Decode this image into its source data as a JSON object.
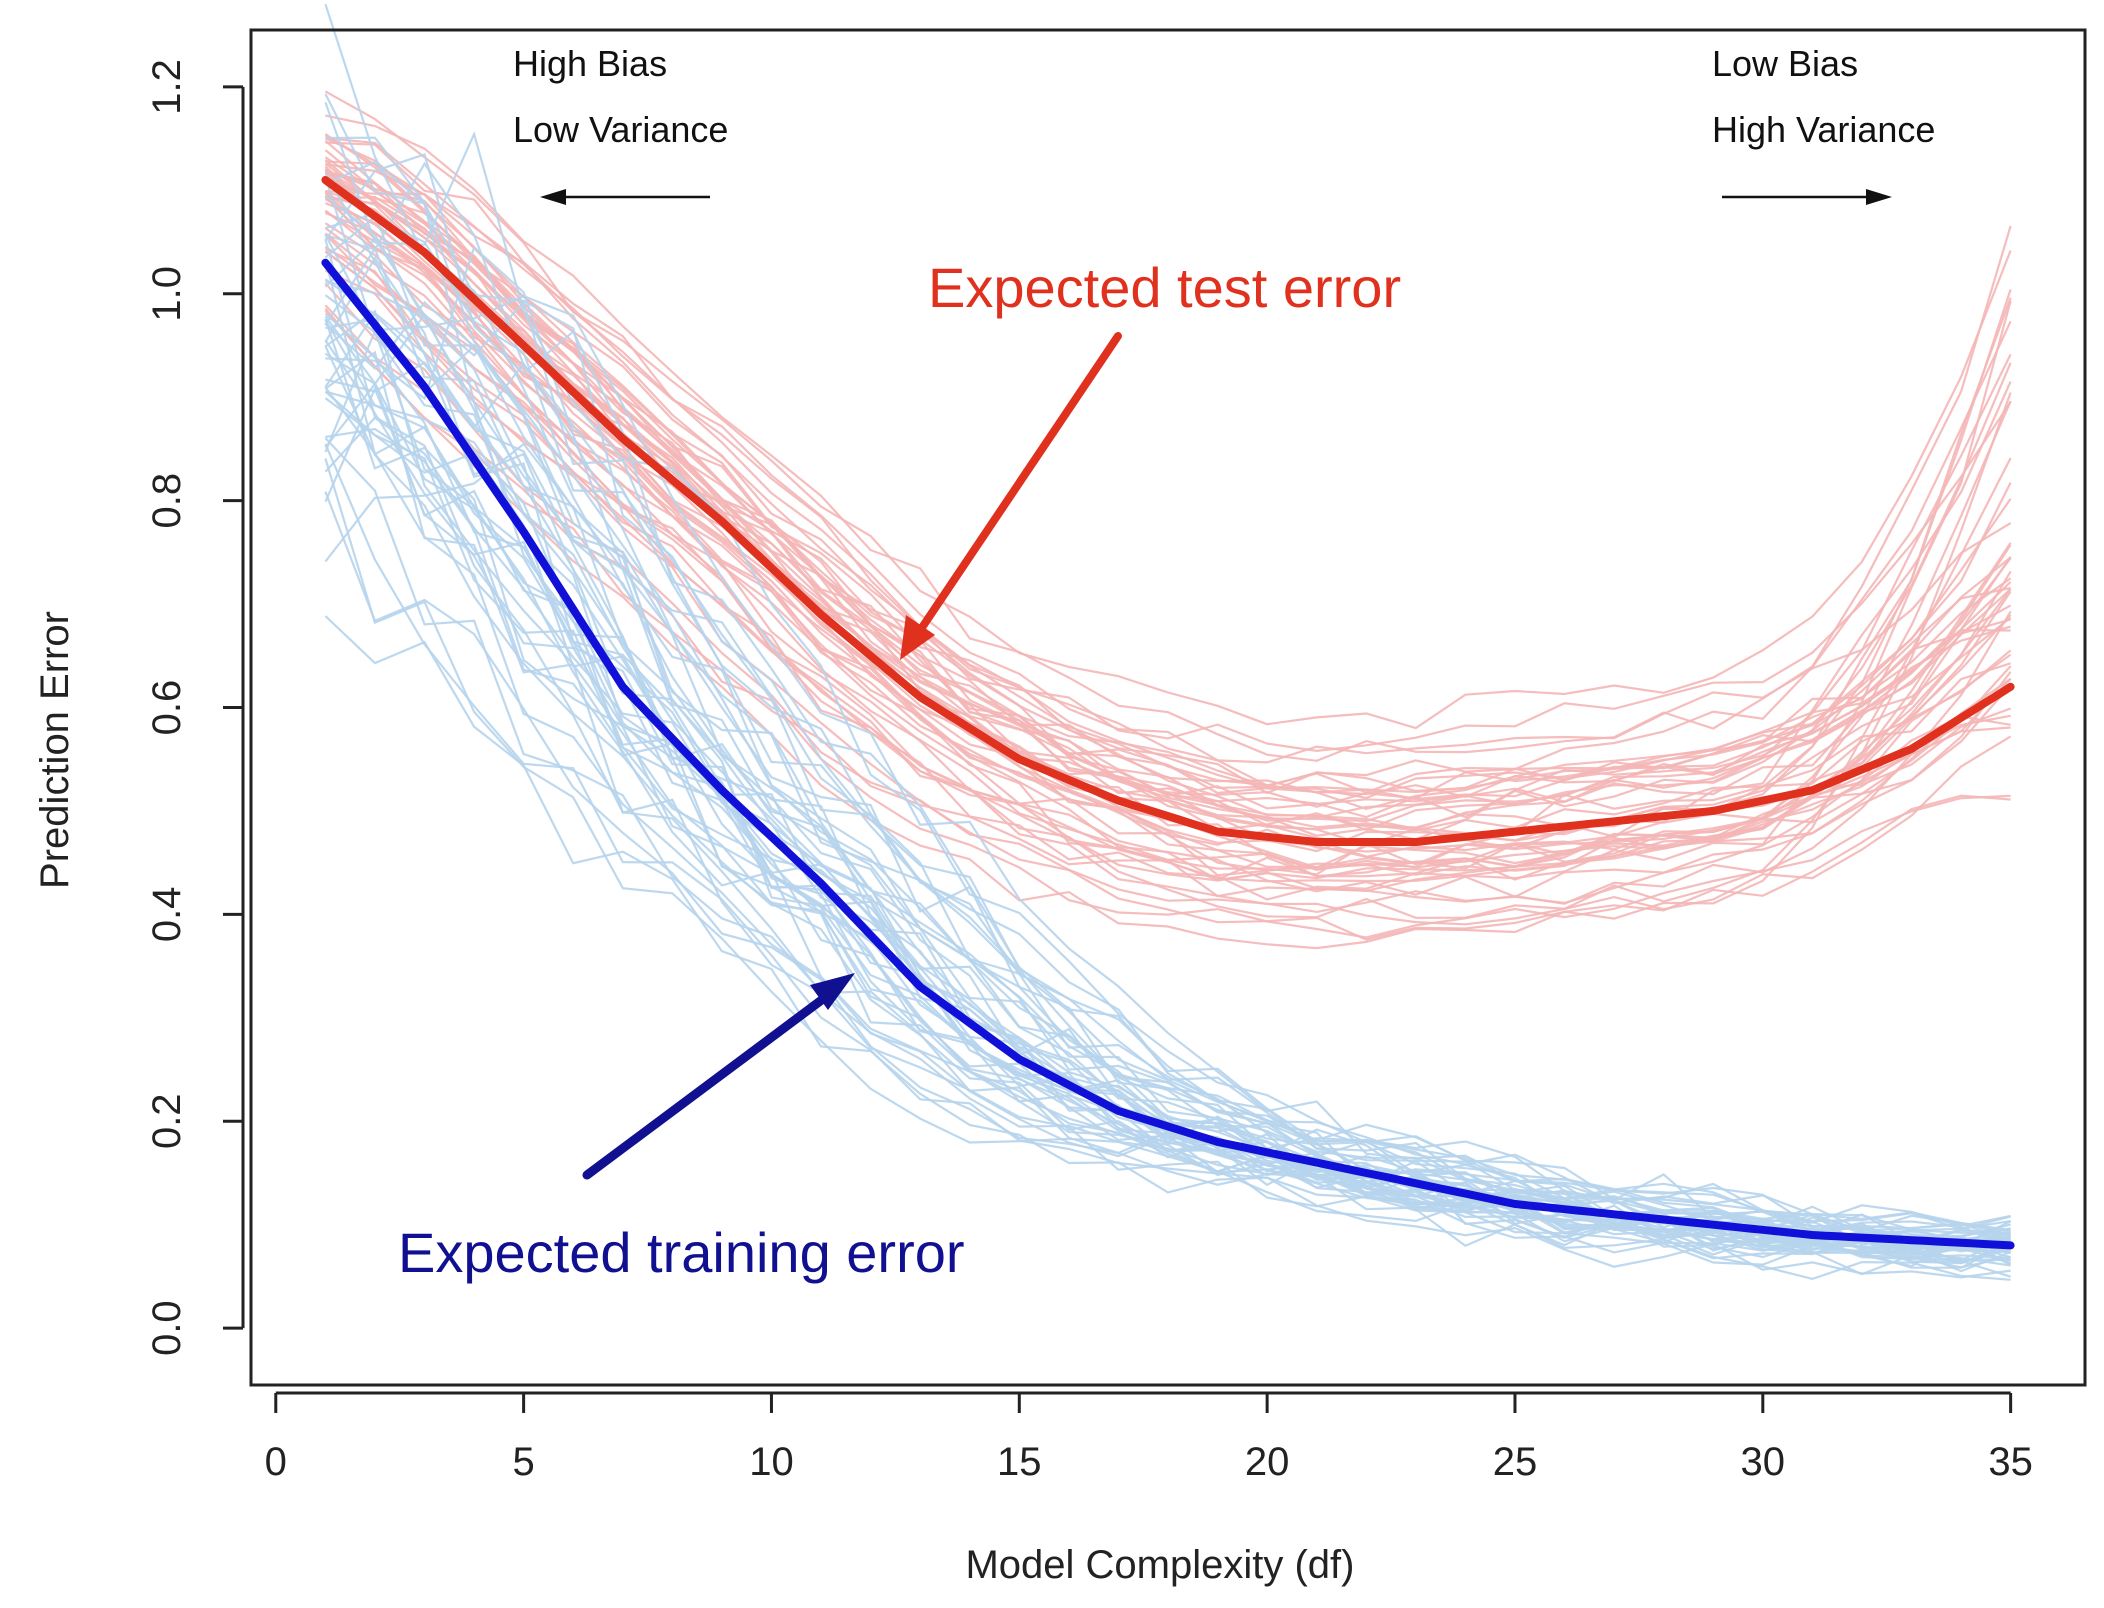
{
  "chart_data": {
    "type": "line",
    "xlabel": "Model Complexity (df)",
    "ylabel": "Prediction Error",
    "xlim": [
      -0.5,
      36.5
    ],
    "ylim": [
      -0.055,
      1.255
    ],
    "x_ticks": [
      0,
      5,
      10,
      15,
      20,
      25,
      30,
      35
    ],
    "x_tick_labels": [
      "0",
      "5",
      "10",
      "15",
      "20",
      "25",
      "30",
      "35"
    ],
    "y_ticks": [
      0.0,
      0.2,
      0.4,
      0.6,
      0.8,
      1.0,
      1.2
    ],
    "y_tick_labels": [
      "0.0",
      "0.2",
      "0.4",
      "0.6",
      "0.8",
      "1.0",
      "1.2"
    ],
    "grid": false,
    "legend": "none",
    "x": [
      1,
      3,
      5,
      7,
      9,
      11,
      13,
      15,
      17,
      19,
      21,
      23,
      25,
      27,
      29,
      31,
      33,
      35
    ],
    "series": [
      {
        "name": "Expected test error",
        "color": "#e0301e",
        "values": [
          1.11,
          1.04,
          0.95,
          0.86,
          0.78,
          0.69,
          0.61,
          0.55,
          0.51,
          0.48,
          0.47,
          0.47,
          0.48,
          0.49,
          0.5,
          0.52,
          0.56,
          0.62
        ]
      },
      {
        "name": "Expected training error",
        "color": "#1010d8",
        "values": [
          1.03,
          0.91,
          0.77,
          0.62,
          0.52,
          0.43,
          0.33,
          0.26,
          0.21,
          0.18,
          0.16,
          0.14,
          0.12,
          0.11,
          0.1,
          0.09,
          0.085,
          0.08
        ]
      }
    ],
    "background_curves": {
      "test_color": "#f4b6b6",
      "training_color": "#b6d4ec",
      "count_per_group": 50
    }
  },
  "annotations": {
    "left_bias": "High Bias",
    "left_variance": "Low Variance",
    "right_bias": "Low Bias",
    "right_variance": "High Variance",
    "test_label": "Expected test error",
    "training_label": "Expected training error",
    "test_label_color": "#e0301e",
    "training_label_color": "#101090"
  }
}
